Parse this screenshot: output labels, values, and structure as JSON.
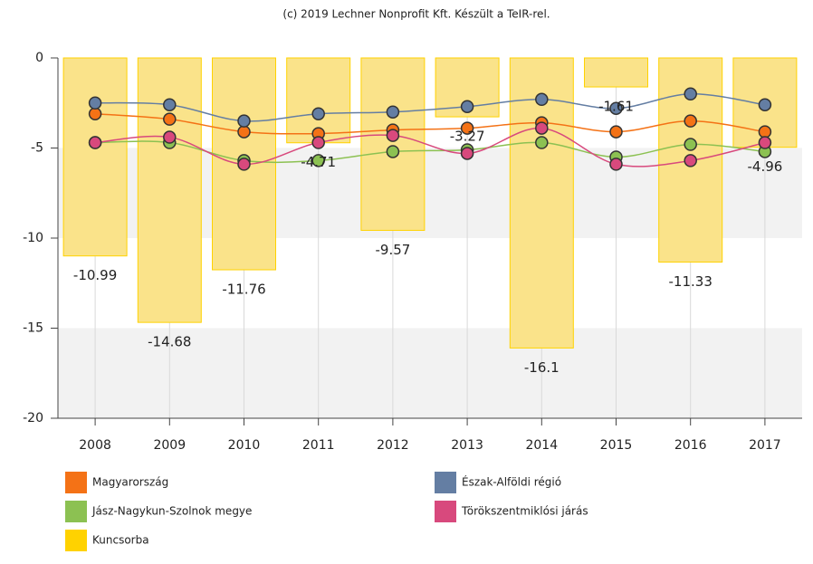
{
  "chart_data": {
    "type": "combo",
    "title": "(c) 2019 Lechner Nonprofit Kft. Készült a TeIR-rel.",
    "categories": [
      "2008",
      "2009",
      "2010",
      "2011",
      "2012",
      "2013",
      "2014",
      "2015",
      "2016",
      "2017"
    ],
    "ylim": [
      -20,
      0
    ],
    "yticks": [
      0,
      -5,
      -10,
      -15,
      -20
    ],
    "grid": true,
    "series": [
      {
        "name": "Magyarország",
        "type": "line",
        "color": "#f47216",
        "values": [
          -3.1,
          -3.4,
          -4.1,
          -4.2,
          -4.0,
          -3.9,
          -3.6,
          -4.1,
          -3.5,
          -4.1
        ]
      },
      {
        "name": "Észak-Alföldi régió",
        "type": "line",
        "color": "#647ea3",
        "values": [
          -2.5,
          -2.6,
          -3.5,
          -3.1,
          -3.0,
          -2.7,
          -2.3,
          -2.8,
          -2.0,
          -2.6
        ]
      },
      {
        "name": "Jász-Nagykun-Szolnok megye",
        "type": "line",
        "color": "#8cc152",
        "values": [
          -4.7,
          -4.7,
          -5.7,
          -5.7,
          -5.2,
          -5.1,
          -4.7,
          -5.5,
          -4.8,
          -5.2
        ]
      },
      {
        "name": "Törökszentmiklósi járás",
        "type": "line",
        "color": "#d8497d",
        "values": [
          -4.7,
          -4.4,
          -5.9,
          -4.7,
          -4.3,
          -5.3,
          -3.9,
          -5.9,
          -5.7,
          -4.7
        ]
      },
      {
        "name": "Kuncsorba",
        "type": "bar",
        "color": "#ffd200",
        "values": [
          -10.99,
          -14.68,
          -11.76,
          -4.71,
          -9.57,
          -3.27,
          -16.1,
          -1.61,
          -11.33,
          -4.96
        ]
      }
    ]
  }
}
